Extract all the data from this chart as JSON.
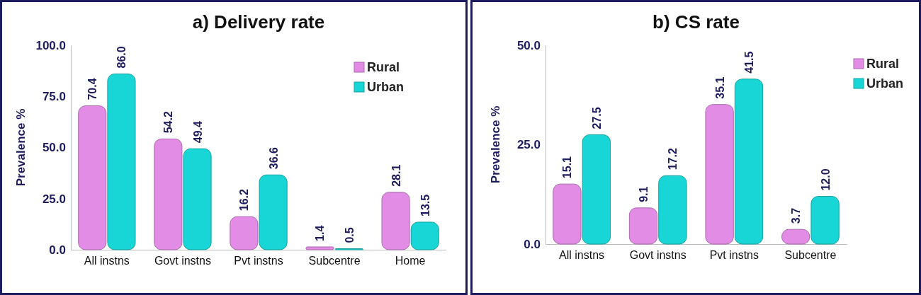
{
  "chart_data": [
    {
      "type": "bar",
      "title": "a) Delivery rate",
      "ylabel": "Prevalence %",
      "categories": [
        "All instns",
        "Govt instns",
        "Pvt instns",
        "Subcentre",
        "Home"
      ],
      "ylim": [
        0,
        100
      ],
      "yticks": [
        {
          "value": 0,
          "label": "0.0"
        },
        {
          "value": 25,
          "label": "25.0"
        },
        {
          "value": 50,
          "label": "50.0"
        },
        {
          "value": 75,
          "label": "75.0"
        },
        {
          "value": 100,
          "label": "100.0"
        }
      ],
      "legend": "top right",
      "series": [
        {
          "name": "Rural",
          "color": "#e28ce6",
          "values": [
            70.4,
            54.2,
            16.2,
            1.4,
            28.1
          ],
          "value_labels": [
            "70.4",
            "54.2",
            "16.2",
            "1.4",
            "28.1"
          ]
        },
        {
          "name": "Urban",
          "color": "#19d6d6",
          "values": [
            86.0,
            49.4,
            36.6,
            0.5,
            13.5
          ],
          "value_labels": [
            "86.0",
            "49.4",
            "36.6",
            "0.5",
            "13.5"
          ]
        }
      ]
    },
    {
      "type": "bar",
      "title": "b) CS rate",
      "ylabel": "Prevalence %",
      "categories": [
        "All instns",
        "Govt instns",
        "Pvt instns",
        "Subcentre"
      ],
      "ylim": [
        0,
        50
      ],
      "yticks": [
        {
          "value": 0,
          "label": "0.0"
        },
        {
          "value": 25,
          "label": "25.0"
        },
        {
          "value": 50,
          "label": "50.0"
        }
      ],
      "legend": "top right",
      "series": [
        {
          "name": "Rural",
          "color": "#e28ce6",
          "values": [
            15.1,
            9.1,
            35.1,
            3.7
          ],
          "value_labels": [
            "15.1",
            "9.1",
            "35.1",
            "3.7"
          ]
        },
        {
          "name": "Urban",
          "color": "#19d6d6",
          "values": [
            27.5,
            17.2,
            41.5,
            12.0
          ],
          "value_labels": [
            "27.5",
            "17.2",
            "41.5",
            "12.0"
          ]
        }
      ]
    }
  ]
}
